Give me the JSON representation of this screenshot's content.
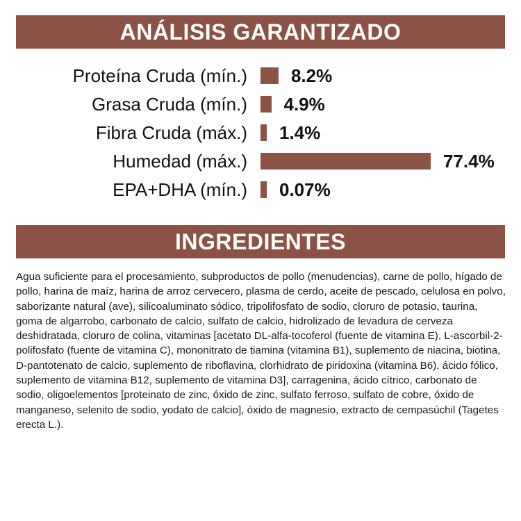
{
  "analysis": {
    "title": "ANÁLISIS GARANTIZADO",
    "bar_color": "#8c5245",
    "scale_max_percent": 77.4,
    "rows": [
      {
        "label": "Proteína Cruda (mín.)",
        "value_text": "8.2%",
        "percent": 8.2
      },
      {
        "label": "Grasa Cruda (mín.)",
        "value_text": "4.9%",
        "percent": 4.9
      },
      {
        "label": "Fibra Cruda (máx.)",
        "value_text": "1.4%",
        "percent": 1.4
      },
      {
        "label": "Humedad (máx.)",
        "value_text": "77.4%",
        "percent": 77.4
      },
      {
        "label": "EPA+DHA (mín.)",
        "value_text": "0.07%",
        "percent": 0.07
      }
    ]
  },
  "ingredients": {
    "title": "INGREDIENTES",
    "text": "Agua suficiente para el procesamiento, subproductos de pollo (menudencias), carne de pollo, hígado de pollo, harina de maíz, harina de arroz cervecero, plasma de cerdo, aceite de pescado, celulosa en polvo, saborizante natural (ave), silicoaluminato sódico, tripolifosfato de sodio, cloruro de potasio, taurina, goma de algarrobo, carbonato de calcio, sulfato de calcio, hidrolizado de levadura de cerveza deshidratada, cloruro de colina, vitaminas [acetato DL-alfa-tocoferol (fuente de vitamina E), L-ascorbil-2-polifosfato (fuente de vitamina C), mononitrato de tiamina (vitamina B1), suplemento de niacina, biotina, D-pantotenato de calcio, suplemento de riboflavina, clorhidrato de piridoxina (vitamina B6), ácido fólico, suplemento de vitamina B12, suplemento de vitamina D3], carragenina, ácido cítrico, carbonato de sodio, oligoelementos [proteinato de zinc, óxido de zinc, sulfato ferroso, sulfato de cobre, óxido de manganeso, selenito de sodio, yodato de calcio], óxido de magnesio, extracto de cempasúchil (Tagetes erecta L.)."
  }
}
